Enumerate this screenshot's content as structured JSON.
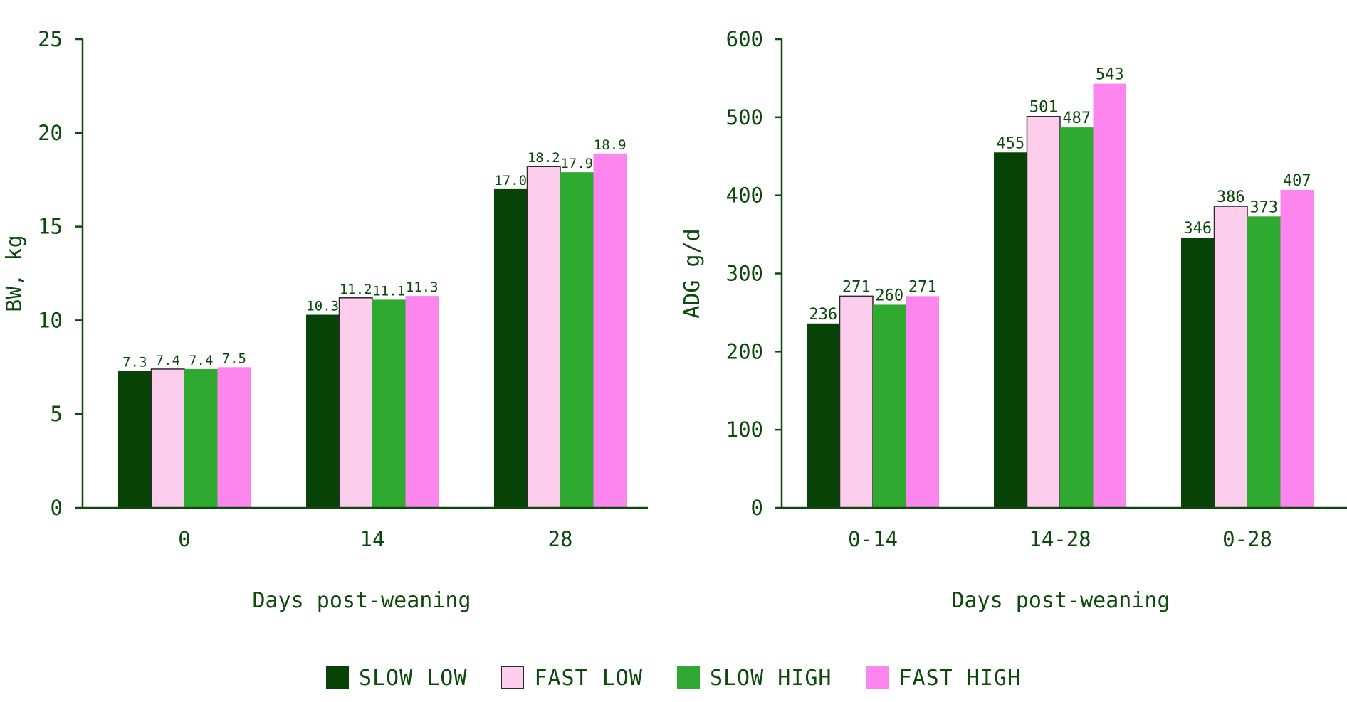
{
  "colors": {
    "text": "#0b4a0b",
    "axis": "#0b4a0b",
    "slow_low": "#074207",
    "fast_low": "#fdcdee",
    "slow_high": "#2fa92f",
    "fast_high": "#fd85ee",
    "outline": "#2b2b2b"
  },
  "legend": {
    "items": [
      {
        "label": "SLOW LOW",
        "color": "#074207",
        "outlined": false
      },
      {
        "label": "FAST LOW",
        "color": "#fdcdee",
        "outlined": true
      },
      {
        "label": "SLOW HIGH",
        "color": "#2fa92f",
        "outlined": false
      },
      {
        "label": "FAST HIGH",
        "color": "#fd85ee",
        "outlined": true
      }
    ]
  },
  "chart_data": [
    {
      "type": "bar",
      "title": "",
      "xlabel": "Days post-weaning",
      "ylabel": "BW, kg",
      "categories": [
        "0",
        "14",
        "28"
      ],
      "ylim": [
        0,
        25
      ],
      "yticks": [
        0,
        5,
        10,
        15,
        20,
        25
      ],
      "value_decimals": 1,
      "series": [
        {
          "name": "SLOW LOW",
          "values": [
            7.3,
            10.3,
            17.0
          ]
        },
        {
          "name": "FAST LOW",
          "values": [
            7.4,
            11.2,
            18.2
          ]
        },
        {
          "name": "SLOW HIGH",
          "values": [
            7.4,
            11.1,
            17.9
          ]
        },
        {
          "name": "FAST HIGH",
          "values": [
            7.5,
            11.3,
            18.9
          ]
        }
      ]
    },
    {
      "type": "bar",
      "title": "",
      "xlabel": "Days post-weaning",
      "ylabel": "ADG g/d",
      "categories": [
        "0-14",
        "14-28",
        "0-28"
      ],
      "ylim": [
        0,
        600
      ],
      "yticks": [
        0,
        100,
        200,
        300,
        400,
        500,
        600
      ],
      "value_decimals": 0,
      "series": [
        {
          "name": "SLOW LOW",
          "values": [
            236,
            455,
            346
          ]
        },
        {
          "name": "FAST LOW",
          "values": [
            271,
            501,
            386
          ]
        },
        {
          "name": "SLOW HIGH",
          "values": [
            260,
            487,
            373
          ]
        },
        {
          "name": "FAST HIGH",
          "values": [
            271,
            543,
            407
          ]
        }
      ]
    }
  ]
}
